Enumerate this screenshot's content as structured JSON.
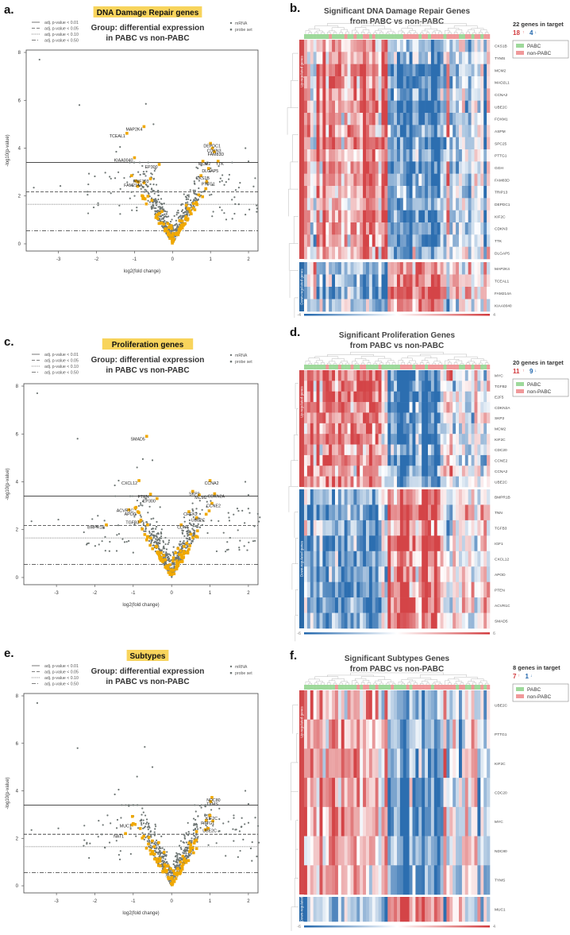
{
  "colors": {
    "highlight_box": "#f8d45c",
    "probe_set": "#f0a800",
    "mrna": "#6f7775",
    "heat_red": "#d23a3d",
    "heat_blue": "#2166ac",
    "pabc": "#9ed99b",
    "non_pabc": "#f0999a",
    "up_bar": "#d2494b",
    "down_bar": "#2a6aa8"
  },
  "chart_data": [
    {
      "type": "scatter",
      "panel_label": "a.",
      "highlight_title": "DNA Damage Repair genes",
      "title_line1": "Group: differential expression",
      "title_line2": "in PABC vs non-PABC",
      "xlabel": "log2(fold change)",
      "ylabel": "-log10(p-value)",
      "xlim": [
        -3.85,
        2.25
      ],
      "ylim": [
        -0.3,
        8.1
      ],
      "xticks": [
        "-3",
        "-2",
        "-1",
        "0",
        "1",
        "2"
      ],
      "yticks": [
        "0",
        "2",
        "4",
        "6",
        "8"
      ],
      "thresholds": [
        {
          "label": "adj. p-value < 0.01",
          "value": 3.4,
          "style": "solid"
        },
        {
          "label": "adj. p-value < 0.05",
          "value": 2.17,
          "style": "dashed"
        },
        {
          "label": "adj. p-value < 0.10",
          "value": 1.65,
          "style": "dotted"
        },
        {
          "label": "adj. p-value < 0.50",
          "value": 0.55,
          "style": "dashdot"
        }
      ],
      "legend": [
        "mRNA",
        "probe set"
      ],
      "seed": 11,
      "outliers": [
        [
          -3.5,
          7.7
        ],
        [
          -2.45,
          5.8
        ],
        [
          -0.7,
          5.85
        ],
        [
          -0.5,
          5.0
        ],
        [
          -3.65,
          2.35
        ],
        [
          -2.95,
          2.42
        ],
        [
          1.92,
          4.0
        ],
        [
          2.0,
          3.45
        ],
        [
          1.48,
          2.7
        ],
        [
          -1.48,
          3.85
        ],
        [
          -1.38,
          4.05
        ]
      ],
      "labeled_points": [
        {
          "gene": "MAP2K4",
          "x": -0.75,
          "y": 4.9
        },
        {
          "gene": "TCEAL1",
          "x": -1.2,
          "y": 4.62
        },
        {
          "gene": "KIAA0040",
          "x": -1.0,
          "y": 3.6
        },
        {
          "gene": "EP300",
          "x": -0.35,
          "y": 3.32
        },
        {
          "gene": "RNF103",
          "x": -0.58,
          "y": 2.72
        },
        {
          "gene": "FAM214A",
          "x": -0.75,
          "y": 2.55
        },
        {
          "gene": "DEPDC1",
          "x": 1.0,
          "y": 4.2
        },
        {
          "gene": "CDKN3",
          "x": 1.05,
          "y": 4.0
        },
        {
          "gene": "FAM83D",
          "x": 1.1,
          "y": 3.85
        },
        {
          "gene": "MCM2",
          "x": 0.8,
          "y": 3.45
        },
        {
          "gene": "TTK",
          "x": 1.2,
          "y": 3.45
        },
        {
          "gene": "DLGAP5",
          "x": 0.95,
          "y": 3.15
        },
        {
          "gene": "CKS1B",
          "x": 0.75,
          "y": 2.85
        },
        {
          "gene": "PTTG1",
          "x": 0.9,
          "y": 2.6
        }
      ]
    },
    {
      "type": "heatmap",
      "panel_label": "b.",
      "title_line1": "Significant DNA Damage Repair Genes",
      "title_line2": "from PABC vs non-PABC",
      "genes_in_target": "22 genes in target",
      "up_count": "18",
      "down_count": "4",
      "legend": [
        "PABC",
        "non-PABC"
      ],
      "up_label": "Up-regulated genes",
      "down_label": "Down-regulated genes",
      "scale_min": "-4",
      "scale_max": "4",
      "sample_groups": "PPPPPPPPNPPPPNPPNPPNNPNPPPPPPPPPNNNNNPNNPNNNNPNNNNPPNNPNNPNN",
      "seed": 21,
      "up_genes": [
        "CKS1B",
        "TYMS",
        "MCM2",
        "MAD2L1",
        "CCNA2",
        "UBE2C",
        "FOXM1",
        "ASPM",
        "SPC25",
        "PTTG1",
        "GGH",
        "FAM83D",
        "TRIP13",
        "DEPDC1",
        "KIF2C",
        "CDKN3",
        "TTK",
        "DLGAP5"
      ],
      "down_genes": [
        "MAP2K4",
        "TCEAL1",
        "FAM214A",
        "KIAA0040"
      ]
    },
    {
      "type": "scatter",
      "panel_label": "c.",
      "highlight_title": "Proliferation genes",
      "title_line1": "Group: differential expression",
      "title_line2": "in PABC vs non-PABC",
      "xlabel": "log2(fold change)",
      "ylabel": "-log10(p-value)",
      "xlim": [
        -3.85,
        2.25
      ],
      "ylim": [
        -0.3,
        8.1
      ],
      "xticks": [
        "-3",
        "-2",
        "-1",
        "0",
        "1",
        "2"
      ],
      "yticks": [
        "0",
        "2",
        "4",
        "6",
        "8"
      ],
      "thresholds": [
        {
          "label": "adj. p-value < 0.01",
          "value": 3.4,
          "style": "solid"
        },
        {
          "label": "adj. p-value < 0.05",
          "value": 2.17,
          "style": "dashed"
        },
        {
          "label": "adj. p-value < 0.10",
          "value": 1.65,
          "style": "dotted"
        },
        {
          "label": "adj. p-value < 0.50",
          "value": 0.55,
          "style": "dashdot"
        }
      ],
      "legend": [
        "mRNA",
        "probe set"
      ],
      "seed": 33,
      "outliers": [
        [
          -3.5,
          7.7
        ],
        [
          -2.45,
          5.8
        ],
        [
          -0.9,
          4.6
        ],
        [
          -0.5,
          4.9
        ],
        [
          -3.65,
          2.35
        ],
        [
          -2.95,
          2.42
        ],
        [
          1.92,
          4.0
        ],
        [
          2.0,
          3.45
        ],
        [
          1.48,
          2.7
        ],
        [
          -1.48,
          3.85
        ],
        [
          -1.38,
          4.05
        ],
        [
          -0.75,
          4.95
        ]
      ],
      "labeled_points": [
        {
          "gene": "SMAD5",
          "x": -0.65,
          "y": 5.9
        },
        {
          "gene": "CXCL12",
          "x": -0.85,
          "y": 4.05
        },
        {
          "gene": "PTEN",
          "x": -0.55,
          "y": 3.48
        },
        {
          "gene": "EP300",
          "x": -0.38,
          "y": 3.3
        },
        {
          "gene": "ACVR1C",
          "x": -0.95,
          "y": 2.9
        },
        {
          "gene": "APOD",
          "x": -0.88,
          "y": 2.75
        },
        {
          "gene": "TGFB3",
          "x": -0.8,
          "y": 2.4
        },
        {
          "gene": "BMPR1B",
          "x": -1.7,
          "y": 2.2
        },
        {
          "gene": "CCNA2",
          "x": 1.0,
          "y": 4.05
        },
        {
          "gene": "SKP2",
          "x": 0.55,
          "y": 3.6
        },
        {
          "gene": "MCM2",
          "x": 0.72,
          "y": 3.45
        },
        {
          "gene": "CDKN2A",
          "x": 1.12,
          "y": 3.5
        },
        {
          "gene": "CCNE2",
          "x": 1.05,
          "y": 3.1
        },
        {
          "gene": "CHEK2",
          "x": 0.45,
          "y": 2.75
        },
        {
          "gene": "UBE2C",
          "x": 0.65,
          "y": 2.5
        },
        {
          "gene": "CDK4",
          "x": 0.25,
          "y": 2.2
        }
      ]
    },
    {
      "type": "heatmap",
      "panel_label": "d.",
      "title_line1": "Significant Proliferation Genes",
      "title_line2": "from PABC vs non-PABC",
      "genes_in_target": "20 genes in target",
      "up_count": "11",
      "down_count": "9",
      "legend": [
        "PABC",
        "non-PABC"
      ],
      "up_label": "Up-regulated genes",
      "down_label": "Down-regulated genes",
      "scale_min": "-6",
      "scale_max": "6",
      "sample_groups": "PPPPPPPNPPPNPPPNPPNNPPPPNPPPPPPNNNNPNNNPNNNNNPNNNNPPNNPNNPPN",
      "seed": 41,
      "up_genes": [
        "MYC",
        "TGFB2",
        "E2F5",
        "CDKN2A",
        "SKP2",
        "MCM2",
        "KIF2C",
        "CDC20",
        "CCNE2",
        "CCNA2",
        "UBE2C"
      ],
      "down_genes": [
        "BMPR1B",
        "TNN",
        "TGFB3",
        "IGF1",
        "CXCL12",
        "APOD",
        "PTEN",
        "ACVR1C",
        "SMAD5"
      ]
    },
    {
      "type": "scatter",
      "panel_label": "e.",
      "highlight_title": "Subtypes",
      "title_line1": "Group: differential expression",
      "title_line2": "in PABC vs non-PABC",
      "xlabel": "log2(fold change)",
      "ylabel": "-log10(p-value)",
      "xlim": [
        -3.85,
        2.25
      ],
      "ylim": [
        -0.3,
        8.1
      ],
      "xticks": [
        "-3",
        "-2",
        "-1",
        "0",
        "1",
        "2"
      ],
      "yticks": [
        "0",
        "2",
        "4",
        "6",
        "8"
      ],
      "thresholds": [
        {
          "label": "adj. p-value < 0.01",
          "value": 3.4,
          "style": "solid"
        },
        {
          "label": "adj. p-value < 0.05",
          "value": 2.17,
          "style": "dashed"
        },
        {
          "label": "adj. p-value < 0.10",
          "value": 1.65,
          "style": "dotted"
        },
        {
          "label": "adj. p-value < 0.50",
          "value": 0.55,
          "style": "dashdot"
        }
      ],
      "legend": [
        "mRNA",
        "probe set"
      ],
      "seed": 55,
      "outliers": [
        [
          -3.5,
          7.7
        ],
        [
          -2.45,
          5.8
        ],
        [
          -0.7,
          5.85
        ],
        [
          -0.5,
          5.0
        ],
        [
          -3.65,
          2.35
        ],
        [
          -2.95,
          2.42
        ],
        [
          1.92,
          4.0
        ],
        [
          2.0,
          3.45
        ],
        [
          1.48,
          2.7
        ],
        [
          -1.48,
          3.85
        ],
        [
          -1.38,
          4.05
        ],
        [
          -0.9,
          4.6
        ]
      ],
      "labeled_points": [
        {
          "gene": "MUC1",
          "x": -1.0,
          "y": 2.62
        },
        {
          "gene": "NAT1",
          "x": -1.2,
          "y": 2.2
        },
        {
          "gene": "NDC80",
          "x": 1.05,
          "y": 3.72
        },
        {
          "gene": "TYMS",
          "x": 1.02,
          "y": 3.55
        },
        {
          "gene": "KIF2C",
          "x": 1.0,
          "y": 2.95
        },
        {
          "gene": "PTTG1",
          "x": 0.9,
          "y": 2.75
        },
        {
          "gene": "UBE2C",
          "x": 0.95,
          "y": 2.42
        }
      ]
    },
    {
      "type": "heatmap",
      "panel_label": "f.",
      "title_line1": "Significant Subtypes Genes",
      "title_line2": "from PABC vs non-PABC",
      "genes_in_target": "8 genes in target",
      "up_count": "7",
      "down_count": "1",
      "legend": [
        "PABC",
        "non-PABC"
      ],
      "up_label": "Up-regulated genes",
      "down_label": "Down-regulated",
      "scale_min": "-6",
      "scale_max": "4",
      "sample_groups": "PPPPPPPPPPNPPPPPPNPNNPPNPPPPNPPPPNPNNNNNNPNNNNNNNPNNPPNPPNPN",
      "seed": 67,
      "up_genes": [
        "UBE2C",
        "PTTG1",
        "KIF2C",
        "CDC20",
        "MYC",
        "NDC80",
        "TYMS"
      ],
      "down_genes": [
        "MUC1"
      ]
    }
  ]
}
